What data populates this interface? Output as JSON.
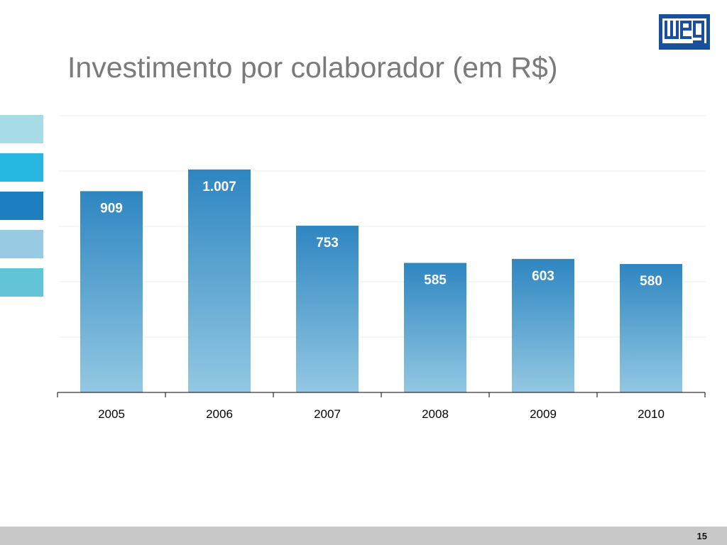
{
  "slide": {
    "title": "Investimento por colaborador (em R$)",
    "page_number": "15",
    "logo_text": "weg",
    "brand_color": "#1a4fa0",
    "accent_squares": [
      "#a6dce8",
      "#27b6e0",
      "#1d7fbf",
      "#97cbe3",
      "#63c4d8"
    ]
  },
  "chart_data": {
    "type": "bar",
    "categories": [
      "2005",
      "2006",
      "2007",
      "2008",
      "2009",
      "2010"
    ],
    "values": [
      909,
      1007,
      753,
      585,
      603,
      580
    ],
    "value_labels": [
      "909",
      "1.007",
      "753",
      "585",
      "603",
      "580"
    ],
    "title": "",
    "xlabel": "",
    "ylabel": "",
    "ylim": [
      0,
      1250
    ],
    "grid": true,
    "bar_gradient": [
      "#2e86c1",
      "#93c8e2"
    ],
    "label_color": "#ffffff"
  }
}
